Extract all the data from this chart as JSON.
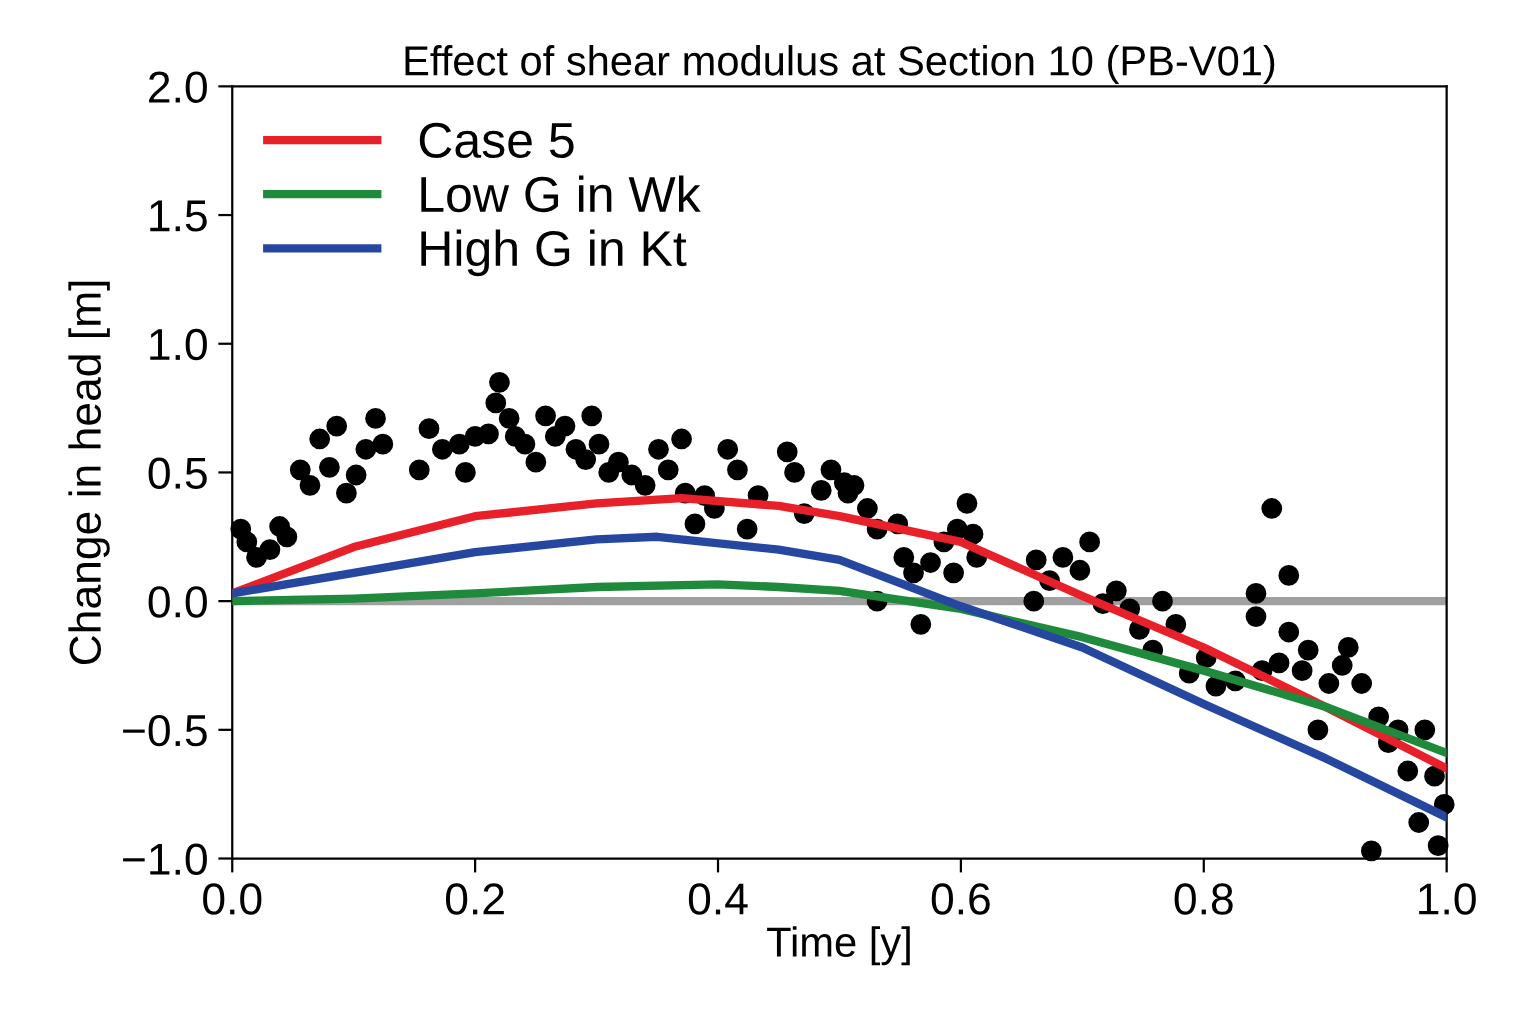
{
  "chart_data": {
    "type": "line",
    "title": "Effect of shear modulus at Section 10 (PB-V01)",
    "xlabel": "Time [y]",
    "ylabel": "Change in head [m]",
    "xlim": [
      0,
      1
    ],
    "xticks": [
      {
        "value": 0,
        "label": "0.0"
      },
      0.2,
      0.4,
      0.6,
      0.8,
      {
        "value": 1,
        "label": "1.0"
      }
    ],
    "ylim": [
      -1,
      2
    ],
    "yticks": [
      {
        "value": -1,
        "label": "−1.0"
      },
      {
        "value": -0.5,
        "label": "−0.5"
      },
      {
        "value": 0,
        "label": "0.0"
      },
      0.5,
      {
        "value": 1,
        "label": "1.0"
      },
      1.5,
      {
        "value": 2,
        "label": "2.0"
      }
    ],
    "grid": false,
    "legend": "top left",
    "line_style": "solid",
    "marker": "none",
    "ref_lines": [
      {
        "axis": "y",
        "value": 0,
        "color": "#a0a0a0"
      }
    ],
    "series": [
      {
        "type": "scatter",
        "marker": "circle",
        "color": "#000000",
        "x": [
          0.007,
          0.012,
          0.02,
          0.031,
          0.039,
          0.045,
          0.056,
          0.064,
          0.072,
          0.08,
          0.086,
          0.094,
          0.102,
          0.11,
          0.118,
          0.124,
          0.154,
          0.162,
          0.173,
          0.187,
          0.192,
          0.2,
          0.211,
          0.22,
          0.217,
          0.228,
          0.233,
          0.241,
          0.25,
          0.258,
          0.266,
          0.274,
          0.283,
          0.291,
          0.296,
          0.302,
          0.31,
          0.318,
          0.329,
          0.34,
          0.351,
          0.359,
          0.37,
          0.373,
          0.381,
          0.389,
          0.397,
          0.408,
          0.416,
          0.424,
          0.433,
          0.457,
          0.463,
          0.471,
          0.485,
          0.493,
          0.507,
          0.504,
          0.512,
          0.523,
          0.531,
          0.531,
          0.548,
          0.553,
          0.561,
          0.567,
          0.575,
          0.586,
          0.594,
          0.597,
          0.605,
          0.61,
          0.613,
          0.662,
          0.66,
          0.673,
          0.684,
          0.698,
          0.706,
          0.717,
          0.728,
          0.739,
          0.747,
          0.758,
          0.766,
          0.777,
          0.788,
          0.802,
          0.81,
          0.826,
          0.843,
          0.843,
          0.848,
          0.856,
          0.862,
          0.87,
          0.87,
          0.881,
          0.886,
          0.894,
          0.903,
          0.914,
          0.919,
          0.93,
          0.938,
          0.944,
          0.952,
          0.96,
          0.968,
          0.977,
          0.982,
          0.99,
          0.993,
          0.998
        ],
        "values": [
          0.28,
          0.23,
          0.17,
          0.2,
          0.29,
          0.25,
          0.51,
          0.45,
          0.63,
          0.52,
          0.68,
          0.42,
          0.49,
          0.59,
          0.71,
          0.61,
          0.51,
          0.67,
          0.59,
          0.61,
          0.5,
          0.64,
          0.65,
          0.85,
          0.77,
          0.71,
          0.64,
          0.61,
          0.54,
          0.72,
          0.64,
          0.68,
          0.59,
          0.55,
          0.72,
          0.61,
          0.5,
          0.54,
          0.49,
          0.45,
          0.59,
          0.51,
          0.63,
          0.42,
          0.3,
          0.41,
          0.36,
          0.59,
          0.51,
          0.28,
          0.41,
          0.58,
          0.5,
          0.34,
          0.43,
          0.51,
          0.42,
          0.46,
          0.45,
          0.36,
          0.28,
          0.0,
          0.3,
          0.17,
          0.11,
          -0.09,
          0.15,
          0.23,
          0.11,
          0.28,
          0.38,
          0.26,
          0.17,
          0.16,
          0.0,
          0.08,
          0.17,
          0.12,
          0.23,
          -0.01,
          0.04,
          -0.03,
          -0.11,
          -0.19,
          0.0,
          -0.09,
          -0.28,
          -0.22,
          -0.33,
          -0.31,
          0.03,
          -0.06,
          -0.27,
          0.36,
          -0.24,
          0.1,
          -0.12,
          -0.27,
          -0.19,
          -0.5,
          -0.32,
          -0.25,
          -0.18,
          -0.32,
          -0.97,
          -0.45,
          -0.55,
          -0.5,
          -0.66,
          -0.86,
          -0.5,
          -0.68,
          -0.95,
          -0.79
        ]
      },
      {
        "name": "Case 5",
        "color": "#e8202a",
        "x": [
          0,
          0.1,
          0.2,
          0.3,
          0.37,
          0.45,
          0.5,
          0.6,
          0.7,
          0.8,
          0.9,
          1.0
        ],
        "values": [
          0.03,
          0.21,
          0.33,
          0.38,
          0.4,
          0.37,
          0.33,
          0.23,
          0.02,
          -0.18,
          -0.41,
          -0.65
        ]
      },
      {
        "name": "Low G in Wk",
        "color": "#1f8a3c",
        "x": [
          0,
          0.1,
          0.2,
          0.3,
          0.4,
          0.45,
          0.5,
          0.6,
          0.7,
          0.8,
          0.9,
          1.0
        ],
        "values": [
          0,
          0.01,
          0.03,
          0.055,
          0.065,
          0.055,
          0.04,
          -0.03,
          -0.14,
          -0.27,
          -0.41,
          -0.59
        ]
      },
      {
        "name": "High G in Kt",
        "color": "#2547a0",
        "x": [
          0,
          0.1,
          0.2,
          0.3,
          0.35,
          0.45,
          0.5,
          0.6,
          0.7,
          0.8,
          0.9,
          1.0
        ],
        "values": [
          0.03,
          0.11,
          0.19,
          0.24,
          0.25,
          0.2,
          0.16,
          -0.02,
          -0.18,
          -0.4,
          -0.61,
          -0.84
        ]
      }
    ]
  }
}
